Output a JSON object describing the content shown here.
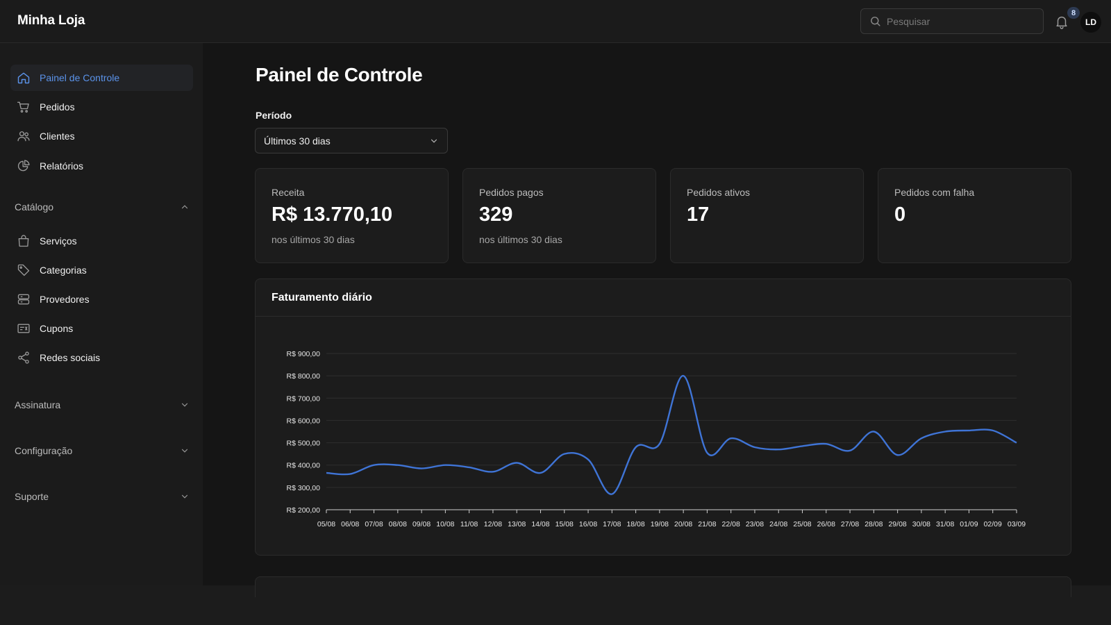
{
  "app": {
    "brand": "Minha Loja"
  },
  "topbar": {
    "search_placeholder": "Pesquisar",
    "notifications_count": "8",
    "avatar_initials": "LD"
  },
  "sidebar": {
    "main_items": [
      {
        "label": "Painel de Controle",
        "icon": "home-icon",
        "active": true
      },
      {
        "label": "Pedidos",
        "icon": "cart-icon"
      },
      {
        "label": "Clientes",
        "icon": "users-icon"
      },
      {
        "label": "Relatórios",
        "icon": "pie-chart-icon"
      }
    ],
    "catalog": {
      "label": "Catálogo",
      "expanded": true,
      "items": [
        {
          "label": "Serviços",
          "icon": "shopping-bag-icon"
        },
        {
          "label": "Categorias",
          "icon": "tag-icon"
        },
        {
          "label": "Provedores",
          "icon": "server-icon"
        },
        {
          "label": "Cupons",
          "icon": "ticket-icon"
        },
        {
          "label": "Redes sociais",
          "icon": "share-icon"
        }
      ]
    },
    "sections": [
      {
        "label": "Assinatura",
        "expanded": false
      },
      {
        "label": "Configuração",
        "expanded": false
      },
      {
        "label": "Suporte",
        "expanded": false
      }
    ]
  },
  "main": {
    "title": "Painel de Controle",
    "period_label": "Período",
    "period_value": "Últimos 30 dias",
    "cards": [
      {
        "label": "Receita",
        "value": "R$ 13.770,10",
        "sub": "nos últimos 30 dias"
      },
      {
        "label": "Pedidos pagos",
        "value": "329",
        "sub": "nos últimos 30 dias"
      },
      {
        "label": "Pedidos ativos",
        "value": "17",
        "sub": ""
      },
      {
        "label": "Pedidos com falha",
        "value": "0",
        "sub": ""
      }
    ],
    "chart_title": "Faturamento diário"
  },
  "colors": {
    "accent": "#5b93ea",
    "line": "#3f74d6",
    "background": "#151515",
    "card": "#1c1c1c"
  },
  "chart_data": {
    "type": "line",
    "title": "Faturamento diário",
    "xlabel": "",
    "ylabel": "",
    "x": [
      "05/08",
      "06/08",
      "07/08",
      "08/08",
      "09/08",
      "10/08",
      "11/08",
      "12/08",
      "13/08",
      "14/08",
      "15/08",
      "16/08",
      "17/08",
      "18/08",
      "19/08",
      "20/08",
      "21/08",
      "22/08",
      "23/08",
      "24/08",
      "25/08",
      "26/08",
      "27/08",
      "28/08",
      "29/08",
      "30/08",
      "31/08",
      "01/09",
      "02/09",
      "03/09"
    ],
    "series": [
      {
        "values": [
          365,
          360,
          400,
          400,
          385,
          400,
          390,
          370,
          410,
          365,
          450,
          425,
          270,
          480,
          495,
          800,
          455,
          520,
          480,
          470,
          485,
          495,
          465,
          550,
          445,
          520,
          550,
          555,
          555,
          500
        ]
      }
    ],
    "ylim": [
      200,
      900
    ],
    "yticks": [
      200,
      300,
      400,
      500,
      600,
      700,
      800,
      900
    ],
    "ytick_labels": [
      "R$ 200,00",
      "R$ 300,00",
      "R$ 400,00",
      "R$ 500,00",
      "R$ 600,00",
      "R$ 700,00",
      "R$ 800,00",
      "R$ 900,00"
    ],
    "grid": true,
    "legend": "none"
  }
}
